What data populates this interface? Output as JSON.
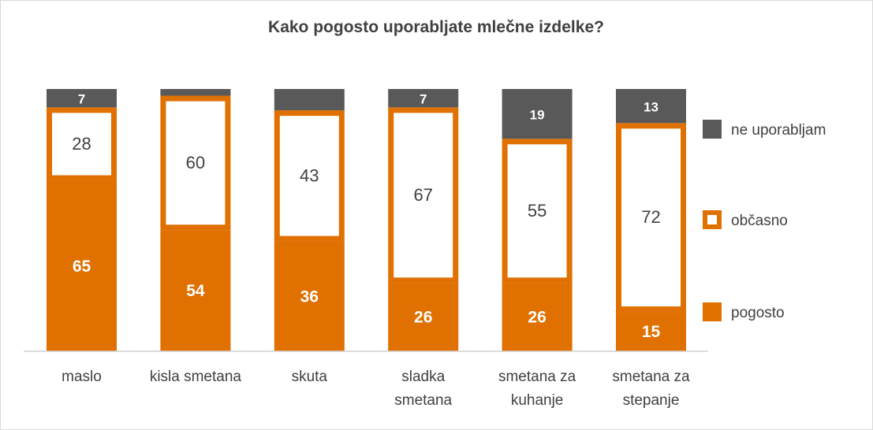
{
  "chart_data": {
    "type": "bar",
    "stacked": true,
    "title": "Kako pogosto uporabljate mlečne izdelke?",
    "categories": [
      [
        "maslo"
      ],
      [
        "kisla smetana"
      ],
      [
        "skuta"
      ],
      [
        "sladka",
        "smetana"
      ],
      [
        "smetana za",
        "kuhanje"
      ],
      [
        "smetana za",
        "stepanje"
      ]
    ],
    "series": [
      {
        "name": "pogosto",
        "values": [
          65,
          54,
          36,
          26,
          26,
          15
        ],
        "labels": [
          "65",
          "54",
          "36",
          "26",
          "26",
          "15"
        ],
        "color": "#e07000"
      },
      {
        "name": "občasno",
        "values": [
          28,
          60,
          43,
          67,
          55,
          72
        ],
        "labels": [
          "28",
          "60",
          "43",
          "67",
          "55",
          "72"
        ],
        "color": "#ffffff",
        "border": "#e07000"
      },
      {
        "name": "ne uporabljam",
        "values": [
          7,
          3,
          7,
          7,
          19,
          13
        ],
        "labels": [
          "7",
          "",
          "",
          "7",
          "19",
          "13"
        ],
        "color": "#595959"
      }
    ],
    "legend_position": "right",
    "grid": false
  }
}
